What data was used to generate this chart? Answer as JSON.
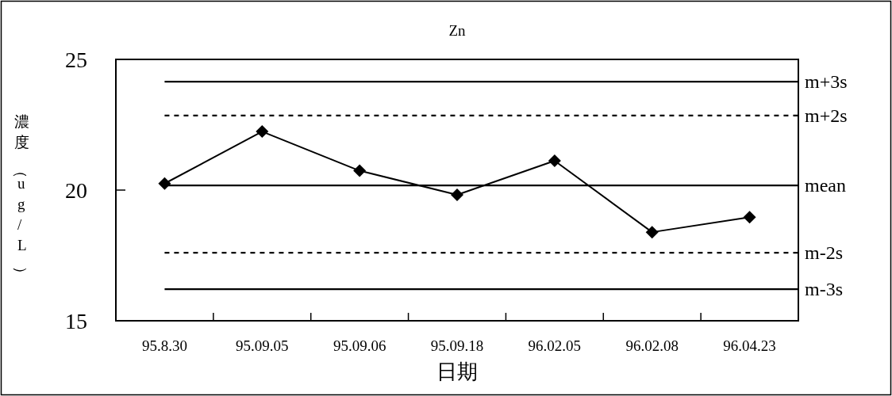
{
  "chart_data": {
    "type": "line",
    "title": "Zn",
    "xlabel": "日期",
    "ylabel": "濃度（ug/L）",
    "categories": [
      "95.8.30",
      "95.09.05",
      "95.09.06",
      "95.09.18",
      "96.02.05",
      "96.02.08",
      "96.04.23"
    ],
    "series": [
      {
        "color": "#000000",
        "values": [
          20.25,
          22.24,
          20.74,
          19.82,
          21.12,
          18.39,
          18.96
        ]
      }
    ],
    "ylim": [
      15,
      25
    ],
    "yticks": [
      15,
      20,
      25
    ],
    "grid": false,
    "marker": "diamond",
    "line_style": "solid",
    "ref_lines": [
      {
        "axis": "y",
        "value": 24.15,
        "label": "m+3s",
        "color": "#000000",
        "line_style": "solid"
      },
      {
        "axis": "y",
        "value": 22.85,
        "label": "m+2s",
        "color": "#000000",
        "line_style": "dashed"
      },
      {
        "axis": "y",
        "value": 20.18,
        "label": "mean",
        "color": "#000000",
        "line_style": "solid"
      },
      {
        "axis": "y",
        "value": 17.6,
        "label": "m-2s",
        "color": "#000000",
        "line_style": "dashed"
      },
      {
        "axis": "y",
        "value": 16.21,
        "label": "m-3s",
        "color": "#000000",
        "line_style": "solid"
      }
    ]
  }
}
